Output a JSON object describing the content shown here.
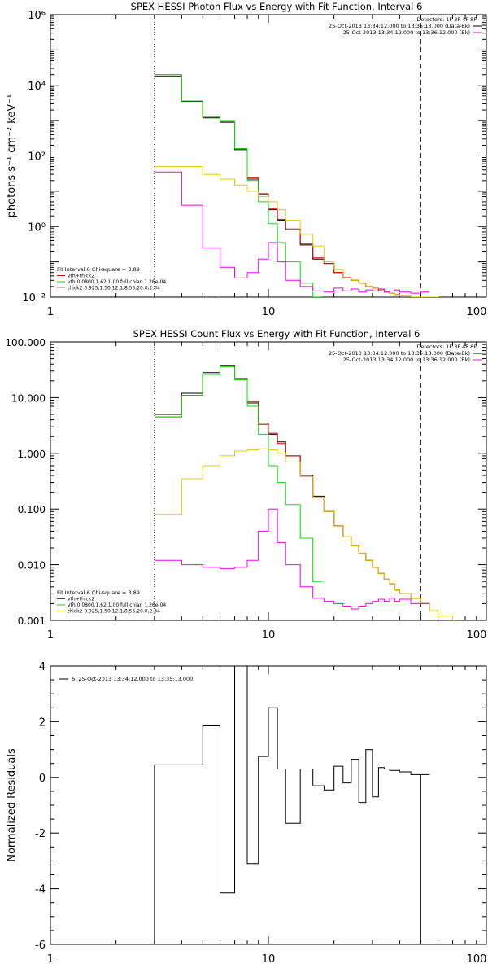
{
  "colors": {
    "total": "#000000",
    "sum_fit": "#e00000",
    "vth": "#00dd00",
    "thick2": "#e8c800",
    "background": "#ee00ee",
    "grid": "#000000"
  },
  "chart_data": [
    {
      "type": "line",
      "scale": "log-log",
      "title": "SPEX HESSI Photon Flux vs Energy with Fit Function, Interval 6",
      "xlabel": "",
      "ylabel": "photons s⁻¹ cm⁻² keV⁻¹",
      "xlim": [
        1,
        100
      ],
      "ylim": [
        0.01,
        1000000
      ],
      "y_tick_labels": [
        "10⁻²",
        "10⁰",
        "10²",
        "10⁴",
        "10⁶"
      ],
      "x_tick_labels": [
        "1",
        "10",
        "100"
      ],
      "vertical_markers": [
        {
          "x": 3,
          "style": "dotted"
        },
        {
          "x": 50,
          "style": "dashed"
        }
      ],
      "legend_top": {
        "detectors": "Detectors: 1F 3F 4F 8F",
        "rows": [
          {
            "text": "25-Oct-2013 13:34:12.000 to 13:35:13.000 (Data-Bk)",
            "color_key": "total"
          },
          {
            "text": "25-Oct-2013 13:34:12.000 to 13:36:12.000 (Bk)",
            "color_key": "background"
          }
        ]
      },
      "legend_bottom": {
        "header": "Fit Interval  6    Chi-square = 3.89",
        "rows": [
          {
            "text": "vth+thick2",
            "color_key": "sum_fit"
          },
          {
            "text": "vth 0.0800,1.62,1.00  full chian 1.26e-04",
            "color_key": "vth"
          },
          {
            "text": "thick2 0.925,1.50,12.1,8.55,20.0,2.34",
            "color_key": "thick2"
          }
        ]
      },
      "series": [
        {
          "color_key": "total",
          "x": [
            3,
            4,
            5,
            6,
            7,
            8,
            9,
            10,
            11,
            12,
            14,
            16,
            18,
            20,
            22,
            24,
            26,
            28,
            30,
            32,
            34,
            36,
            38,
            40,
            45,
            50
          ],
          "y": [
            18000,
            3500,
            1200,
            900,
            150,
            22,
            8,
            3,
            1.5,
            0.8,
            0.3,
            0.12,
            0.09,
            0.05,
            0.035,
            0.03,
            0.025,
            0.02,
            0.018,
            0.016,
            0.014,
            0.013,
            0.012,
            0.011,
            0.01,
            0.01
          ]
        },
        {
          "color_key": "sum_fit",
          "x": [
            3,
            4,
            5,
            6,
            7,
            8,
            9,
            10,
            11,
            12,
            14,
            16,
            18,
            20,
            22,
            24,
            26,
            28,
            30,
            32,
            34,
            36,
            38,
            40,
            45,
            50
          ],
          "y": [
            20000,
            3600,
            1250,
            950,
            160,
            24,
            8.5,
            3.2,
            1.6,
            0.85,
            0.32,
            0.13,
            0.09,
            0.05,
            0.036,
            0.03,
            0.025,
            0.02,
            0.018,
            0.016,
            0.014,
            0.013,
            0.012,
            0.011,
            0.01,
            0.01
          ]
        },
        {
          "color_key": "vth",
          "x": [
            3,
            4,
            5,
            6,
            7,
            8,
            9,
            10,
            11,
            12,
            14,
            16
          ],
          "y": [
            20000,
            3600,
            1250,
            950,
            160,
            20,
            5,
            1.2,
            0.35,
            0.1,
            0.025,
            0.01
          ]
        },
        {
          "color_key": "thick2",
          "x": [
            3,
            4,
            5,
            6,
            7,
            8,
            9,
            10,
            11,
            12,
            14,
            16,
            18,
            20,
            22,
            24,
            26,
            28,
            30,
            32,
            34,
            36,
            38,
            40,
            45,
            50,
            55
          ],
          "y": [
            50,
            50,
            30,
            22,
            15,
            10,
            7,
            5,
            3,
            1.5,
            0.6,
            0.28,
            0.1,
            0.06,
            0.035,
            0.03,
            0.025,
            0.02,
            0.018,
            0.016,
            0.014,
            0.013,
            0.012,
            0.011,
            0.01,
            0.01,
            0.01
          ]
        },
        {
          "color_key": "background",
          "x": [
            3,
            4,
            5,
            6,
            7,
            8,
            9,
            10,
            11,
            12,
            14,
            16,
            18,
            20,
            22,
            24,
            26,
            28,
            30,
            32,
            34,
            36,
            38,
            40,
            45,
            50
          ],
          "y": [
            35,
            4,
            0.25,
            0.07,
            0.035,
            0.05,
            0.12,
            0.35,
            0.1,
            0.03,
            0.02,
            0.015,
            0.014,
            0.018,
            0.015,
            0.017,
            0.014,
            0.016,
            0.015,
            0.017,
            0.014,
            0.015,
            0.016,
            0.014,
            0.013,
            0.014
          ]
        }
      ]
    },
    {
      "type": "line",
      "scale": "log-log",
      "title": "SPEX HESSI Count Flux vs Energy with Fit Function, Interval 6",
      "xlabel": "",
      "ylabel": "",
      "xlim": [
        1,
        100
      ],
      "ylim": [
        0.001,
        100
      ],
      "y_tick_labels": [
        "0.001",
        "0.010",
        "0.100",
        "1.000",
        "10.000",
        "100.000"
      ],
      "x_tick_labels": [
        "1",
        "10",
        "100"
      ],
      "vertical_markers": [
        {
          "x": 3,
          "style": "dotted"
        },
        {
          "x": 50,
          "style": "dashed"
        }
      ],
      "legend_top": {
        "detectors": "Detectors: 1F 3F 4F 8F",
        "rows": [
          {
            "text": "25-Oct-2013 13:34:12.000 to 13:35:13.000 (Data-Bk)",
            "color_key": "total"
          },
          {
            "text": "25-Oct-2013 13:34:12.000 to 13:36:12.000 (Bk)",
            "color_key": "background"
          }
        ]
      },
      "legend_bottom": {
        "header": "Fit Interval  6    Chi-square = 3.89",
        "rows": [
          {
            "text": "vth+thick2",
            "color_key": "sum_fit"
          },
          {
            "text": "vth 0.0800,1.62,1.00  full chian 1.26e-04",
            "color_key": "vth"
          },
          {
            "text": "thick2 0.925,1.50,12.1,8.55,20.0,2.34",
            "color_key": "thick2"
          }
        ]
      },
      "series": [
        {
          "color_key": "total",
          "x": [
            3,
            4,
            5,
            6,
            7,
            8,
            9,
            10,
            11,
            12,
            14,
            16,
            18,
            20,
            22,
            24,
            26,
            28,
            30,
            32,
            34,
            36,
            38,
            40,
            45,
            50
          ],
          "y": [
            5,
            12,
            28,
            38,
            22,
            8,
            3.5,
            2.2,
            1.6,
            0.9,
            0.4,
            0.17,
            0.09,
            0.05,
            0.032,
            0.022,
            0.016,
            0.012,
            0.009,
            0.007,
            0.0055,
            0.0045,
            0.0035,
            0.003,
            0.0025,
            0.002
          ]
        },
        {
          "color_key": "sum_fit",
          "x": [
            3,
            4,
            5,
            6,
            7,
            8,
            9,
            10,
            11,
            12,
            14,
            16,
            18,
            20,
            22,
            24,
            26,
            28,
            30,
            32,
            34,
            36,
            38,
            40,
            45,
            50
          ],
          "y": [
            4.5,
            11,
            26,
            36,
            21,
            8.5,
            3.3,
            2.3,
            1.5,
            0.9,
            0.38,
            0.16,
            0.09,
            0.05,
            0.032,
            0.022,
            0.016,
            0.012,
            0.009,
            0.007,
            0.0055,
            0.0045,
            0.0035,
            0.003,
            0.0025,
            0.002
          ]
        },
        {
          "color_key": "vth",
          "x": [
            3,
            4,
            5,
            6,
            7,
            8,
            9,
            10,
            11,
            12,
            14,
            16
          ],
          "y": [
            4.5,
            11,
            26,
            36,
            21,
            7,
            2.2,
            0.6,
            0.3,
            0.12,
            0.03,
            0.005
          ]
        },
        {
          "color_key": "thick2",
          "x": [
            3,
            4,
            5,
            6,
            7,
            8,
            9,
            10,
            11,
            12,
            14,
            16,
            18,
            20,
            22,
            24,
            26,
            28,
            30,
            32,
            34,
            36,
            38,
            40,
            45,
            50,
            55,
            60,
            70
          ],
          "y": [
            0.08,
            0.35,
            0.6,
            0.9,
            1.1,
            1.15,
            1.2,
            1.15,
            1.0,
            0.7,
            0.38,
            0.16,
            0.09,
            0.05,
            0.032,
            0.022,
            0.016,
            0.012,
            0.009,
            0.007,
            0.0055,
            0.0045,
            0.0035,
            0.003,
            0.0025,
            0.002,
            0.0015,
            0.0012,
            0.001
          ]
        },
        {
          "color_key": "background",
          "x": [
            3,
            4,
            5,
            6,
            7,
            8,
            9,
            10,
            11,
            12,
            14,
            16,
            18,
            20,
            22,
            24,
            26,
            28,
            30,
            32,
            34,
            36,
            38,
            40,
            45,
            50
          ],
          "y": [
            0.012,
            0.01,
            0.009,
            0.0085,
            0.009,
            0.012,
            0.04,
            0.1,
            0.025,
            0.01,
            0.004,
            0.0025,
            0.0022,
            0.002,
            0.0018,
            0.0016,
            0.0018,
            0.002,
            0.0022,
            0.0024,
            0.0022,
            0.0025,
            0.0022,
            0.0024,
            0.002,
            0.002
          ]
        }
      ]
    },
    {
      "type": "line",
      "scale": "log-x",
      "title": "",
      "xlabel": "",
      "ylabel": "Normalized Residuals",
      "xlim": [
        1,
        100
      ],
      "ylim": [
        -6,
        4
      ],
      "y_tick_labels": [
        "-6",
        "-4",
        "-2",
        "0",
        "2",
        "4"
      ],
      "y_tick_values": [
        -6,
        -4,
        -2,
        0,
        2,
        4
      ],
      "x_tick_labels": [
        "1",
        "10",
        "100"
      ],
      "legend_top": {
        "rows": [
          {
            "text": "6. 25-Oct-2013 13:34:12.000 to 13:35:13.000",
            "color_key": "total"
          }
        ]
      },
      "series": [
        {
          "color_key": "total",
          "x": [
            3,
            4,
            5,
            6,
            7,
            8,
            9,
            10,
            11,
            12,
            14,
            16,
            18,
            20,
            22,
            24,
            26,
            28,
            30,
            32,
            34,
            36,
            38,
            40,
            45,
            50
          ],
          "y": [
            0.45,
            0.45,
            1.85,
            -4.15,
            4.0,
            -3.1,
            0.75,
            2.5,
            0.3,
            -1.65,
            0.3,
            -0.3,
            -0.45,
            0.4,
            -0.2,
            0.65,
            -0.9,
            1.0,
            -0.7,
            0.35,
            0.3,
            0.25,
            0.25,
            0.2,
            0.1,
            0.1
          ]
        }
      ]
    }
  ]
}
